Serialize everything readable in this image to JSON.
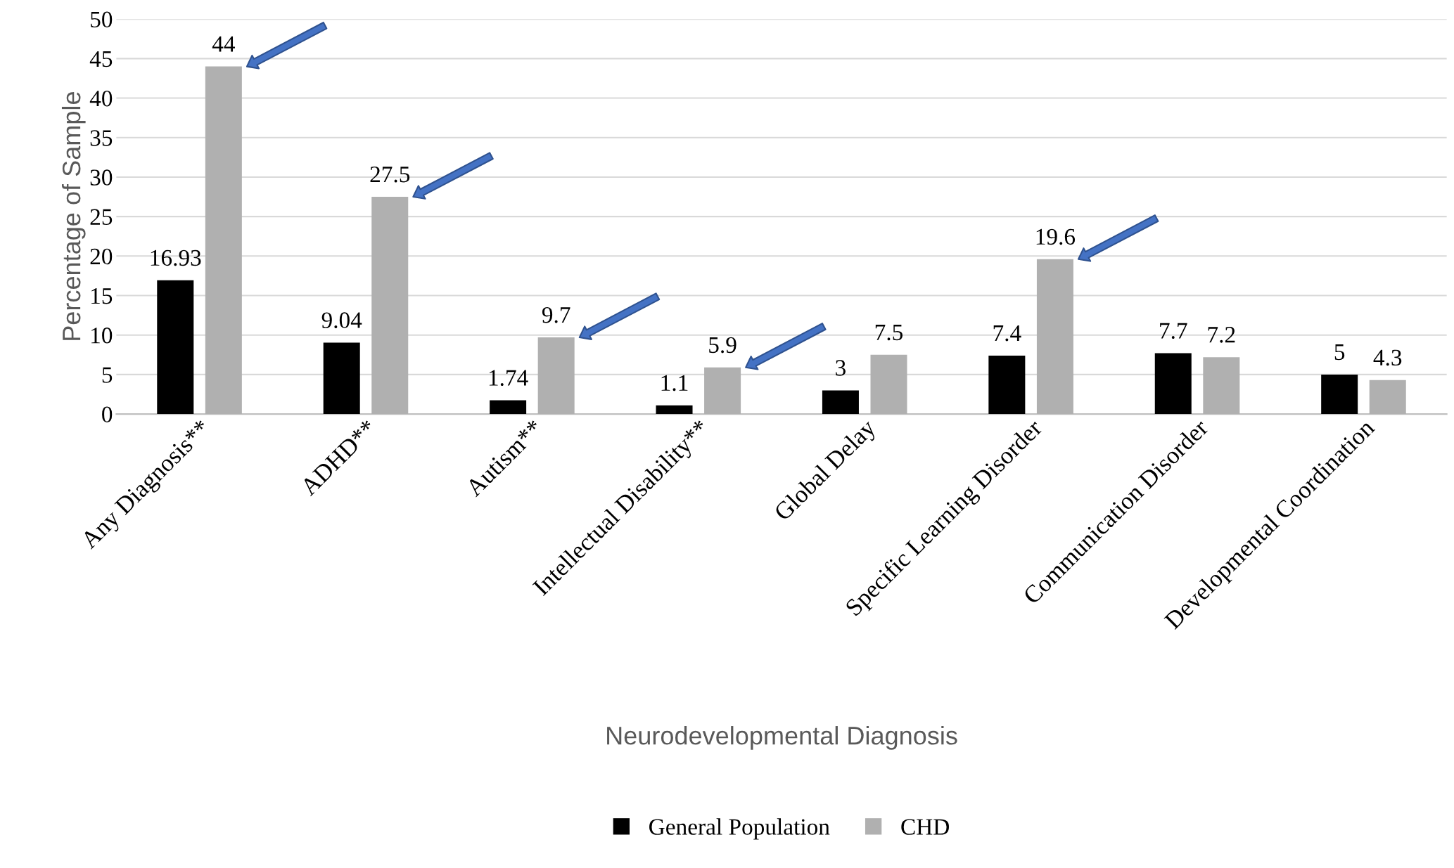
{
  "chart_data": {
    "type": "bar",
    "xlabel": "Neurodevelopmental Diagnosis",
    "ylabel": "Percentage of Sample",
    "categories": [
      "Any Diagnosis**",
      "ADHD**",
      "Autism**",
      "Intellectual Disability**",
      "Global Delay",
      "Specific Learning Disorder",
      "Communication Disorder",
      "Developmental Coordination"
    ],
    "series": [
      {
        "name": "General Population",
        "color": "#000000",
        "values": [
          16.93,
          9.04,
          1.74,
          1.1,
          3,
          7.4,
          7.7,
          5
        ]
      },
      {
        "name": "CHD",
        "color": "#b0b0b0",
        "values": [
          44,
          27.5,
          9.7,
          5.9,
          7.5,
          19.6,
          7.2,
          4.3
        ]
      }
    ],
    "ylim": [
      0,
      50
    ],
    "yticks": [
      0,
      5,
      10,
      15,
      20,
      25,
      30,
      35,
      40,
      45,
      50
    ],
    "grid": "y",
    "legend": "bottom",
    "data_labels": true
  }
}
